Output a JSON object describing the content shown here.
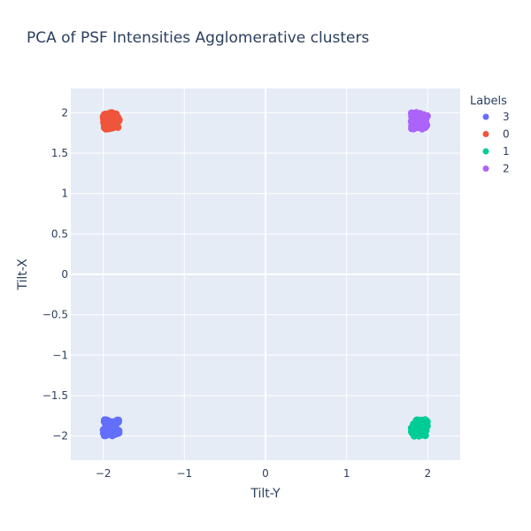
{
  "chart_data": {
    "type": "scatter",
    "title": "PCA of PSF Intensities Agglomerative clusters",
    "xlabel": "Tilt-Y",
    "ylabel": "Tilt-X",
    "xlim": [
      -2.4,
      2.4
    ],
    "ylim": [
      -2.3,
      2.3
    ],
    "x_ticks": [
      -2,
      -1,
      0,
      1,
      2
    ],
    "y_ticks": [
      2,
      1.5,
      1,
      0.5,
      0,
      -0.5,
      -1,
      -1.5,
      -2
    ],
    "x_tick_labels": [
      "−2",
      "−1",
      "0",
      "1",
      "2"
    ],
    "y_tick_labels": [
      "2",
      "1.5",
      "1",
      "0.5",
      "0",
      "−0.5",
      "−1",
      "−1.5",
      "−2"
    ],
    "grid": true,
    "legend": {
      "title": "Labels",
      "position": "top-right"
    },
    "plot_bgcolor": "#e5ecf6",
    "series": [
      {
        "name": "3",
        "color": "#636efa",
        "center": [
          -1.9,
          -1.9
        ],
        "spread": [
          0.1,
          0.1
        ]
      },
      {
        "name": "0",
        "color": "#ef553b",
        "center": [
          -1.9,
          1.9
        ],
        "spread": [
          0.1,
          0.1
        ]
      },
      {
        "name": "1",
        "color": "#00cc96",
        "center": [
          1.9,
          -1.9
        ],
        "spread": [
          0.1,
          0.1
        ]
      },
      {
        "name": "2",
        "color": "#ab63fa",
        "center": [
          1.9,
          1.9
        ],
        "spread": [
          0.1,
          0.1
        ]
      }
    ]
  }
}
